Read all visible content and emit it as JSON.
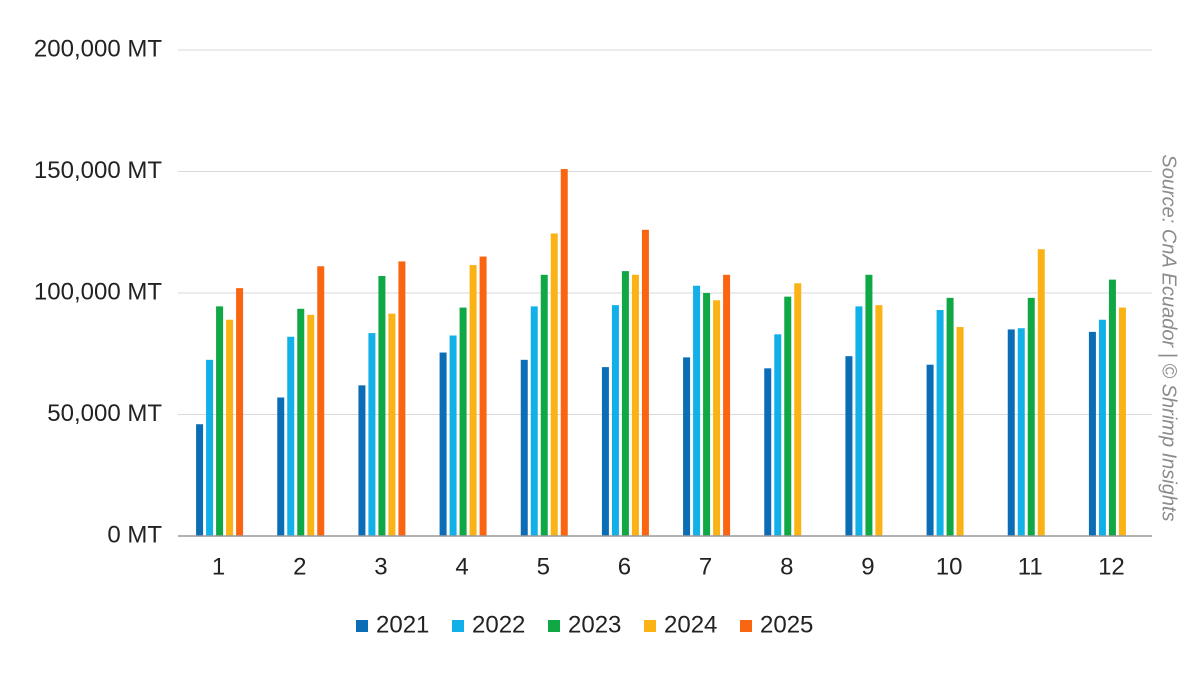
{
  "chart_data": {
    "type": "bar",
    "categories": [
      "1",
      "2",
      "3",
      "4",
      "5",
      "6",
      "7",
      "8",
      "9",
      "10",
      "11",
      "12"
    ],
    "ylim": [
      0,
      200000
    ],
    "y_ticks": [
      0,
      50000,
      100000,
      150000,
      200000
    ],
    "y_tick_labels": [
      "0 MT",
      "50,000 MT",
      "100,000 MT",
      "150,000 MT",
      "200,000 MT"
    ],
    "grid": true,
    "legend_position": "bottom-center",
    "series": [
      {
        "name": "2021",
        "color": "#0b6db5",
        "values": [
          46000,
          57000,
          62000,
          75500,
          72500,
          69500,
          73500,
          69000,
          74000,
          70500,
          85000,
          84000
        ]
      },
      {
        "name": "2022",
        "color": "#11b0e8",
        "values": [
          72500,
          82000,
          83500,
          82500,
          94500,
          95000,
          103000,
          83000,
          94500,
          93000,
          85500,
          89000
        ]
      },
      {
        "name": "2023",
        "color": "#0fa845",
        "values": [
          94500,
          93500,
          107000,
          94000,
          107500,
          109000,
          100000,
          98500,
          107500,
          98000,
          98000,
          105500
        ]
      },
      {
        "name": "2024",
        "color": "#fbb215",
        "values": [
          89000,
          91000,
          91500,
          111500,
          124500,
          107500,
          97000,
          104000,
          95000,
          86000,
          118000,
          94000
        ]
      },
      {
        "name": "2025",
        "color": "#fa6512",
        "values": [
          102000,
          111000,
          113000,
          115000,
          151000,
          126000,
          107500,
          null,
          null,
          null,
          null,
          null
        ]
      }
    ],
    "source": "Source: CnA Ecuador | © Shrimp Insights"
  }
}
